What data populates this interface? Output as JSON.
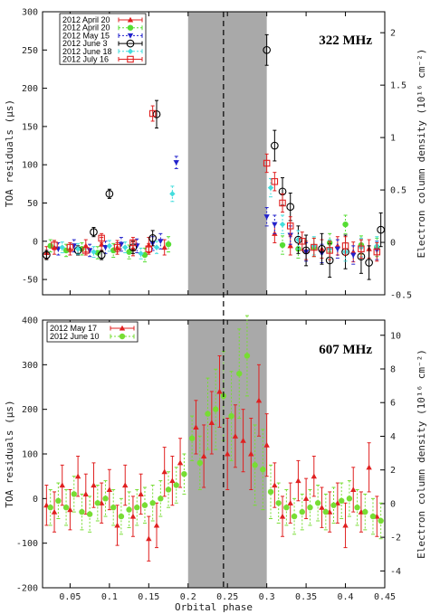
{
  "chart_data": [
    {
      "type": "scatter",
      "frequency_label": "322 MHz",
      "xlabel": "",
      "ylabel": "TOA residuals (µs)",
      "y2label": "Electron column density (10¹⁶ cm⁻²)",
      "xlim": [
        0.015,
        0.45
      ],
      "ylim": [
        -70,
        300
      ],
      "y2lim": [
        -0.5,
        2.2
      ],
      "yticks": [
        "-50",
        "0",
        "50",
        "100",
        "150",
        "200",
        "250",
        "300"
      ],
      "y2ticks": [
        "-0.5",
        "0",
        "0.5",
        "1",
        "1.5",
        "2"
      ],
      "eclipse_band": [
        0.2,
        0.3
      ],
      "conjunction_line": 0.245,
      "legend_position": "top-left",
      "series": [
        {
          "name": "2012 April 20",
          "color": "#e02020",
          "marker": "triangle",
          "points": [
            [
              0.02,
              -15,
              8
            ],
            [
              0.03,
              -8,
              9
            ],
            [
              0.05,
              -10,
              8
            ],
            [
              0.07,
              -6,
              8
            ],
            [
              0.09,
              -4,
              9
            ],
            [
              0.11,
              -8,
              9
            ],
            [
              0.13,
              -10,
              9
            ],
            [
              0.15,
              -5,
              10
            ],
            [
              0.17,
              -8,
              10
            ],
            [
              0.31,
              10,
              12
            ],
            [
              0.33,
              -6,
              12
            ],
            [
              0.35,
              -12,
              12
            ],
            [
              0.37,
              -10,
              12
            ],
            [
              0.39,
              -6,
              12
            ],
            [
              0.41,
              -14,
              13
            ],
            [
              0.43,
              -10,
              12
            ]
          ]
        },
        {
          "name": "2012 April 20",
          "color": "#55dd33",
          "marker": "circle-filled",
          "points": [
            [
              0.025,
              -6,
              8
            ],
            [
              0.045,
              -12,
              8
            ],
            [
              0.065,
              -10,
              8
            ],
            [
              0.085,
              -15,
              8
            ],
            [
              0.105,
              -12,
              9
            ],
            [
              0.125,
              -14,
              9
            ],
            [
              0.145,
              -18,
              9
            ],
            [
              0.175,
              -4,
              10
            ],
            [
              0.32,
              -5,
              12
            ],
            [
              0.34,
              -10,
              12
            ],
            [
              0.36,
              -8,
              12
            ],
            [
              0.38,
              -2,
              12
            ],
            [
              0.4,
              22,
              12
            ],
            [
              0.42,
              -5,
              12
            ],
            [
              0.44,
              -8,
              12
            ]
          ]
        },
        {
          "name": "2012 May 15",
          "color": "#2222cc",
          "marker": "triangle-down",
          "points": [
            [
              0.035,
              -10,
              8
            ],
            [
              0.055,
              -6,
              8
            ],
            [
              0.075,
              -12,
              8
            ],
            [
              0.095,
              -8,
              8
            ],
            [
              0.115,
              -4,
              9
            ],
            [
              0.135,
              -6,
              9
            ],
            [
              0.155,
              -3,
              9
            ],
            [
              0.165,
              0,
              10
            ],
            [
              0.185,
              103,
              8
            ],
            [
              0.3,
              32,
              12
            ],
            [
              0.31,
              22,
              12
            ],
            [
              0.33,
              8,
              12
            ],
            [
              0.35,
              -14,
              12
            ],
            [
              0.37,
              -16,
              12
            ],
            [
              0.39,
              -10,
              12
            ],
            [
              0.41,
              -18,
              12
            ],
            [
              0.44,
              -12,
              12
            ]
          ]
        },
        {
          "name": "2012 June 3",
          "color": "#000000",
          "marker": "circle-open",
          "points": [
            [
              0.02,
              -18,
              6
            ],
            [
              0.06,
              -12,
              6
            ],
            [
              0.08,
              12,
              6
            ],
            [
              0.09,
              -18,
              6
            ],
            [
              0.1,
              62,
              6
            ],
            [
              0.13,
              -8,
              8
            ],
            [
              0.155,
              4,
              10
            ],
            [
              0.16,
              166,
              18
            ],
            [
              0.3,
              250,
              20
            ],
            [
              0.31,
              125,
              20
            ],
            [
              0.32,
              65,
              18
            ],
            [
              0.33,
              45,
              18
            ],
            [
              0.34,
              2,
              18
            ],
            [
              0.35,
              -12,
              20
            ],
            [
              0.37,
              -10,
              20
            ],
            [
              0.38,
              -25,
              22
            ],
            [
              0.4,
              -14,
              22
            ],
            [
              0.42,
              -20,
              22
            ],
            [
              0.43,
              -28,
              22
            ],
            [
              0.445,
              15,
              22
            ]
          ]
        },
        {
          "name": "2012 June 18",
          "color": "#44dddd",
          "marker": "diamond",
          "points": [
            [
              0.04,
              -8,
              7
            ],
            [
              0.06,
              -10,
              7
            ],
            [
              0.08,
              -14,
              7
            ],
            [
              0.1,
              -6,
              7
            ],
            [
              0.12,
              -8,
              7
            ],
            [
              0.14,
              -16,
              7
            ],
            [
              0.16,
              -8,
              8
            ],
            [
              0.18,
              62,
              10
            ],
            [
              0.305,
              70,
              12
            ],
            [
              0.32,
              22,
              12
            ],
            [
              0.34,
              2,
              12
            ],
            [
              0.36,
              -6,
              12
            ],
            [
              0.38,
              -10,
              12
            ],
            [
              0.4,
              -14,
              12
            ],
            [
              0.42,
              -8,
              12
            ],
            [
              0.44,
              -6,
              12
            ]
          ]
        },
        {
          "name": "2012 July 16",
          "color": "#e02020",
          "marker": "square-open",
          "points": [
            [
              0.03,
              -5,
              6
            ],
            [
              0.05,
              -8,
              6
            ],
            [
              0.07,
              -12,
              6
            ],
            [
              0.09,
              4,
              6
            ],
            [
              0.11,
              -8,
              6
            ],
            [
              0.13,
              -2,
              7
            ],
            [
              0.15,
              -10,
              7
            ],
            [
              0.155,
              167,
              10
            ],
            [
              0.3,
              102,
              12
            ],
            [
              0.31,
              78,
              12
            ],
            [
              0.32,
              50,
              12
            ],
            [
              0.33,
              20,
              12
            ],
            [
              0.345,
              0,
              12
            ],
            [
              0.36,
              -8,
              12
            ],
            [
              0.38,
              -12,
              12
            ],
            [
              0.4,
              -6,
              12
            ],
            [
              0.42,
              -10,
              12
            ],
            [
              0.44,
              -14,
              12
            ]
          ]
        }
      ]
    },
    {
      "type": "scatter",
      "frequency_label": "607 MHz",
      "xlabel": "Orbital phase",
      "ylabel": "TOA residuals (µs)",
      "y2label": "Electron column density (10¹⁶ cm⁻²)",
      "xlim": [
        0.015,
        0.45
      ],
      "ylim": [
        -200,
        400
      ],
      "y2lim": [
        -5,
        10.9
      ],
      "xticks": [
        "0.05",
        "0.1",
        "0.15",
        "0.2",
        "0.25",
        "0.3",
        "0.35",
        "0.4",
        "0.45"
      ],
      "yticks": [
        "-200",
        "-100",
        "0",
        "100",
        "200",
        "300",
        "400"
      ],
      "y2ticks": [
        "-4",
        "-2",
        "0",
        "2",
        "4",
        "6",
        "8",
        "10"
      ],
      "eclipse_band": [
        0.2,
        0.3
      ],
      "conjunction_line": 0.245,
      "legend_position": "top-left",
      "series": [
        {
          "name": "2012 May 17",
          "color": "#e02020",
          "marker": "triangle",
          "points": [
            [
              0.02,
              -15,
              45
            ],
            [
              0.03,
              -30,
              45
            ],
            [
              0.04,
              30,
              45
            ],
            [
              0.05,
              -25,
              45
            ],
            [
              0.06,
              50,
              45
            ],
            [
              0.07,
              10,
              45
            ],
            [
              0.08,
              30,
              50
            ],
            [
              0.09,
              -10,
              45
            ],
            [
              0.1,
              20,
              45
            ],
            [
              0.11,
              -60,
              45
            ],
            [
              0.12,
              30,
              45
            ],
            [
              0.13,
              -40,
              45
            ],
            [
              0.14,
              10,
              45
            ],
            [
              0.15,
              -90,
              50
            ],
            [
              0.16,
              -60,
              50
            ],
            [
              0.17,
              60,
              55
            ],
            [
              0.18,
              40,
              55
            ],
            [
              0.19,
              80,
              55
            ],
            [
              0.21,
              160,
              60
            ],
            [
              0.22,
              95,
              70
            ],
            [
              0.23,
              170,
              70
            ],
            [
              0.24,
              240,
              80
            ],
            [
              0.25,
              100,
              80
            ],
            [
              0.26,
              140,
              70
            ],
            [
              0.27,
              130,
              70
            ],
            [
              0.28,
              100,
              80
            ],
            [
              0.29,
              220,
              80
            ],
            [
              0.3,
              120,
              70
            ],
            [
              0.31,
              30,
              50
            ],
            [
              0.32,
              -40,
              45
            ],
            [
              0.33,
              -10,
              45
            ],
            [
              0.34,
              40,
              45
            ],
            [
              0.35,
              0,
              45
            ],
            [
              0.36,
              50,
              45
            ],
            [
              0.37,
              -20,
              45
            ],
            [
              0.38,
              -30,
              45
            ],
            [
              0.39,
              -10,
              45
            ],
            [
              0.4,
              -60,
              50
            ],
            [
              0.41,
              20,
              50
            ],
            [
              0.42,
              -30,
              45
            ],
            [
              0.43,
              70,
              55
            ],
            [
              0.44,
              -40,
              45
            ]
          ]
        },
        {
          "name": "2012 June 10",
          "color": "#77dd33",
          "marker": "circle-filled",
          "points": [
            [
              0.025,
              -20,
              40
            ],
            [
              0.035,
              -5,
              40
            ],
            [
              0.045,
              -20,
              40
            ],
            [
              0.055,
              10,
              40
            ],
            [
              0.065,
              -30,
              40
            ],
            [
              0.075,
              -35,
              40
            ],
            [
              0.085,
              -10,
              40
            ],
            [
              0.095,
              0,
              40
            ],
            [
              0.105,
              -20,
              40
            ],
            [
              0.115,
              -40,
              40
            ],
            [
              0.125,
              -25,
              40
            ],
            [
              0.135,
              -20,
              40
            ],
            [
              0.145,
              -15,
              40
            ],
            [
              0.155,
              -10,
              40
            ],
            [
              0.165,
              0,
              40
            ],
            [
              0.175,
              20,
              40
            ],
            [
              0.185,
              30,
              40
            ],
            [
              0.195,
              55,
              45
            ],
            [
              0.205,
              135,
              50
            ],
            [
              0.215,
              80,
              60
            ],
            [
              0.225,
              190,
              80
            ],
            [
              0.235,
              200,
              90
            ],
            [
              0.245,
              230,
              100
            ],
            [
              0.255,
              185,
              100
            ],
            [
              0.265,
              280,
              100
            ],
            [
              0.275,
              320,
              90
            ],
            [
              0.285,
              75,
              90
            ],
            [
              0.295,
              65,
              90
            ],
            [
              0.305,
              15,
              60
            ],
            [
              0.315,
              -10,
              45
            ],
            [
              0.325,
              -20,
              40
            ],
            [
              0.335,
              -40,
              40
            ],
            [
              0.345,
              -30,
              40
            ],
            [
              0.355,
              -20,
              40
            ],
            [
              0.365,
              -10,
              40
            ],
            [
              0.375,
              -30,
              40
            ],
            [
              0.385,
              -15,
              40
            ],
            [
              0.395,
              -5,
              40
            ],
            [
              0.405,
              0,
              40
            ],
            [
              0.415,
              -20,
              40
            ],
            [
              0.425,
              -30,
              40
            ],
            [
              0.435,
              -40,
              40
            ],
            [
              0.445,
              -50,
              40
            ]
          ]
        }
      ]
    }
  ]
}
